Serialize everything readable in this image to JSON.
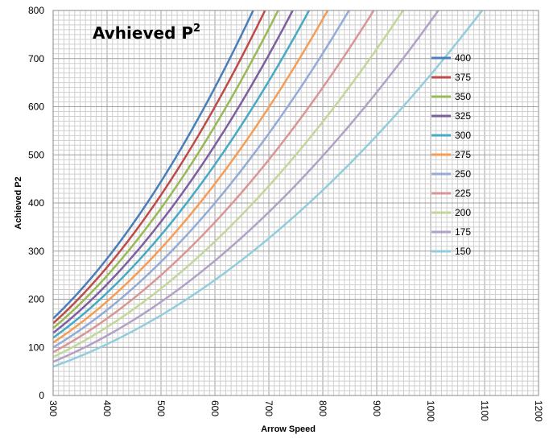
{
  "chart_data": {
    "type": "line",
    "title": "Avhieved P",
    "title_superscript": "2",
    "xlabel": "Arrow Speed",
    "ylabel": "Achieved P2",
    "xlim": [
      300,
      1200
    ],
    "ylim": [
      0,
      800
    ],
    "x_ticks": [
      "300",
      "400",
      "500",
      "600",
      "700",
      "800",
      "900",
      "1000",
      "1100",
      "1200"
    ],
    "y_ticks": [
      "0",
      "100",
      "200",
      "300",
      "400",
      "500",
      "600",
      "700",
      "800"
    ],
    "x_ticks_vals": [
      300,
      400,
      500,
      600,
      700,
      800,
      900,
      1000,
      1100,
      1200
    ],
    "y_ticks_vals": [
      0,
      100,
      200,
      300,
      400,
      500,
      600,
      700,
      800
    ],
    "grid": true,
    "legend_position": "right",
    "formula": "y = weight * x^2 / 225000",
    "series": [
      {
        "name": "400",
        "weight": 400,
        "color": "#4a7ebb"
      },
      {
        "name": "375",
        "weight": 375,
        "color": "#be4b48"
      },
      {
        "name": "350",
        "weight": 350,
        "color": "#98b954"
      },
      {
        "name": "325",
        "weight": 325,
        "color": "#7d5fa0"
      },
      {
        "name": "300",
        "weight": 300,
        "color": "#46aac5"
      },
      {
        "name": "275",
        "weight": 275,
        "color": "#f59d56"
      },
      {
        "name": "250",
        "weight": 250,
        "color": "#94abd6"
      },
      {
        "name": "225",
        "weight": 225,
        "color": "#d99694"
      },
      {
        "name": "200",
        "weight": 200,
        "color": "#c3d69b"
      },
      {
        "name": "175",
        "weight": 175,
        "color": "#b2a1c7"
      },
      {
        "name": "150",
        "weight": 150,
        "color": "#93cddd"
      }
    ]
  }
}
